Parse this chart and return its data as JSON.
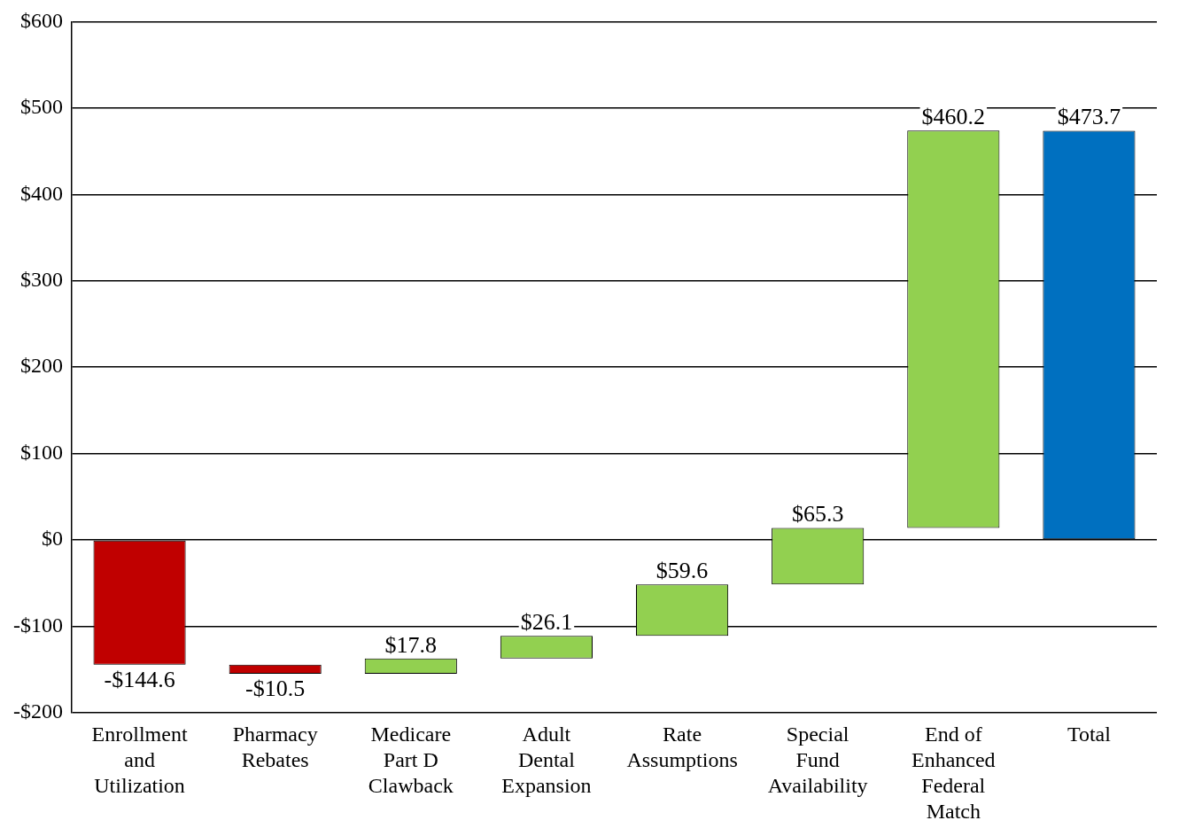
{
  "chart_data": {
    "type": "bar",
    "categories": [
      "Enrollment and Utilization",
      "Pharmacy Rebates",
      "Medicare Part D Clawback",
      "Adult Dental Expansion",
      "Rate Assumptions",
      "Special Fund Availability",
      "End of Enhanced Federal Match",
      "Total"
    ],
    "values": [
      -144.6,
      -10.5,
      17.8,
      26.1,
      59.6,
      65.3,
      460.2,
      473.7
    ],
    "base": [
      0,
      -144.6,
      -155.1,
      -137.3,
      -111.2,
      -51.6,
      13.7,
      0
    ],
    "colors": [
      "#c00000",
      "#c00000",
      "#92d050",
      "#92d050",
      "#92d050",
      "#92d050",
      "#92d050",
      "#0070c0"
    ],
    "value_labels": [
      "-$144.6",
      "-$10.5",
      "$17.8",
      "$26.1",
      "$59.6",
      "$65.3",
      "$460.2",
      "$473.7"
    ],
    "ylim": [
      -200,
      600
    ],
    "yticks": [
      {
        "value": -200,
        "label": "-$200"
      },
      {
        "value": -100,
        "label": "-$100"
      },
      {
        "value": 0,
        "label": "$0"
      },
      {
        "value": 100,
        "label": "$100"
      },
      {
        "value": 200,
        "label": "$200"
      },
      {
        "value": 300,
        "label": "$300"
      },
      {
        "value": 400,
        "label": "$400"
      },
      {
        "value": 500,
        "label": "$500"
      },
      {
        "value": 600,
        "label": "$600"
      }
    ],
    "grid": "y",
    "legend": false
  }
}
